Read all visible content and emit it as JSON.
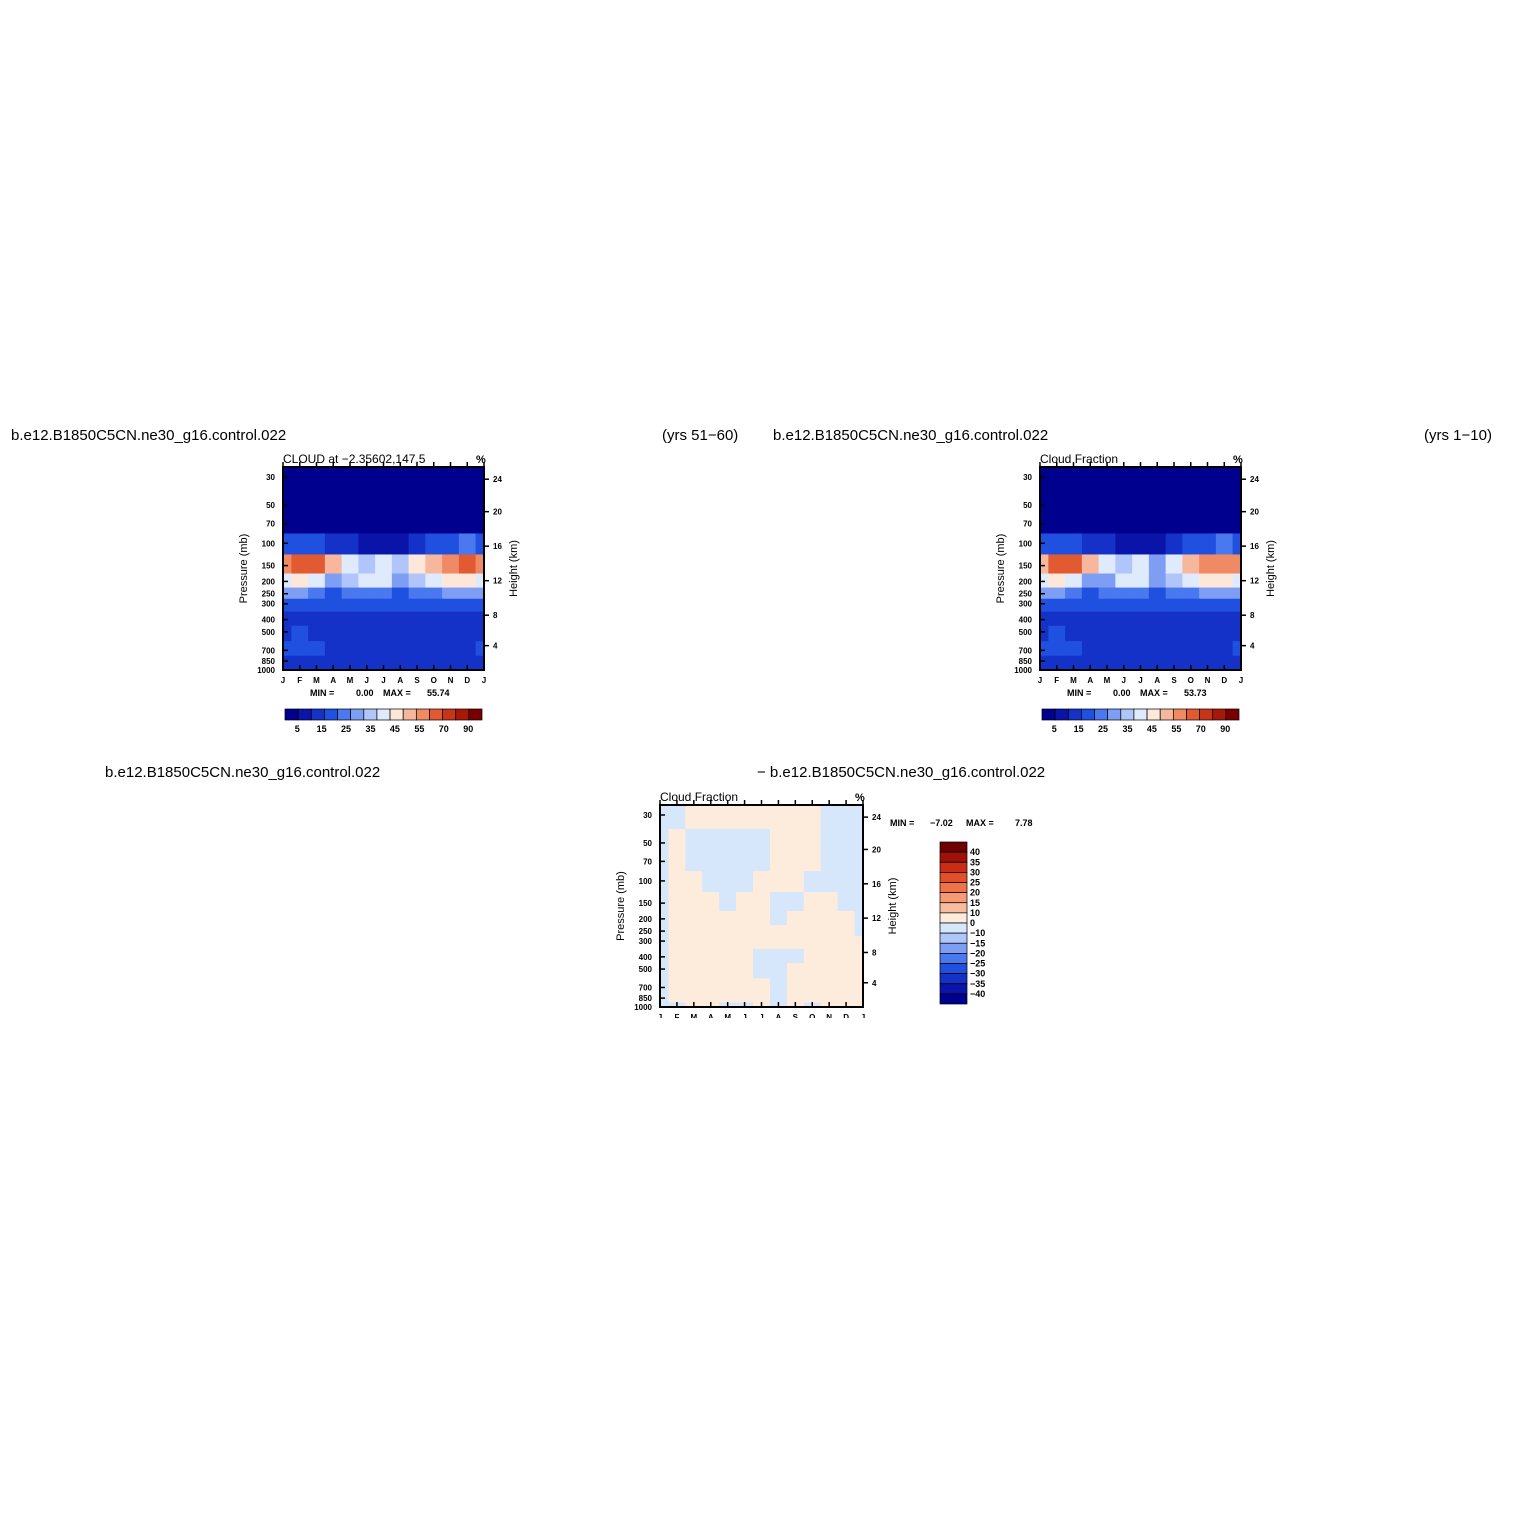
{
  "colors": {
    "abs_levels": [
      "#00008f",
      "#0a14a8",
      "#1432c8",
      "#2050e0",
      "#4a78ee",
      "#7e9ef4",
      "#b0c6fa",
      "#dfeafd",
      "#fde7d8",
      "#f7b79c",
      "#f08a64",
      "#e25a32",
      "#c83418",
      "#a81808",
      "#7a0000"
    ],
    "diff_levels": [
      "#00008f",
      "#0a14a8",
      "#1432c8",
      "#2050e0",
      "#4a78ee",
      "#7e9ef4",
      "#b0c6fa",
      "#d6e6fb",
      "#fdecdc",
      "#f7bd9e",
      "#f49a74",
      "#ee7448",
      "#e2502a",
      "#c82e14",
      "#9e1208",
      "#6e0000"
    ]
  },
  "chart_data": [
    {
      "type": "heatmap",
      "case": "b.e12.B1850C5CN.ne30_g16.control.022",
      "period": "(yrs 51−60)",
      "title": "CLOUD at −2.35602,147.5",
      "units": "%",
      "ylabel": "Pressure (mb)",
      "y2label": "Height (km)",
      "x_ticks": [
        "J",
        "F",
        "M",
        "A",
        "M",
        "J",
        "J",
        "A",
        "S",
        "O",
        "N",
        "D",
        "J"
      ],
      "y_ticks": [
        "30",
        "50",
        "70",
        "100",
        "150",
        "200",
        "250",
        "300",
        "400",
        "500",
        "700",
        "850",
        "1000"
      ],
      "y2_ticks": [
        "24",
        "20",
        "16",
        "12",
        "8",
        "4"
      ],
      "stats": {
        "min_label": "MIN =",
        "min": "0.00",
        "max_label": "MAX =",
        "max": "55.74"
      },
      "colorbar_labels": [
        "5",
        "15",
        "25",
        "35",
        "45",
        "55",
        "70",
        "90"
      ],
      "levels": [
        3,
        5,
        10,
        15,
        20,
        25,
        30,
        35,
        40,
        45,
        50,
        55,
        60,
        70,
        80,
        90
      ],
      "min": 0.0,
      "max": 55.74,
      "pressure_levels": [
        30,
        50,
        70,
        100,
        150,
        200,
        250,
        300,
        400,
        500,
        700,
        850,
        1000
      ],
      "values": [
        [
          1,
          1,
          1,
          1,
          1,
          1,
          1,
          1,
          1,
          1,
          1,
          1,
          1
        ],
        [
          1,
          1,
          1,
          1,
          1,
          1,
          1,
          1,
          1,
          1,
          1,
          1,
          1
        ],
        [
          2,
          2,
          2,
          2,
          2,
          1,
          1,
          1,
          2,
          2,
          2,
          2,
          2
        ],
        [
          14,
          14,
          13,
          9,
          6,
          4,
          3,
          4,
          7,
          12,
          14,
          15,
          14
        ],
        [
          45,
          50,
          52,
          40,
          32,
          28,
          30,
          26,
          36,
          44,
          48,
          50,
          46
        ],
        [
          34,
          36,
          33,
          24,
          26,
          30,
          33,
          24,
          26,
          34,
          36,
          36,
          34
        ],
        [
          20,
          21,
          19,
          14,
          16,
          18,
          17,
          14,
          16,
          19,
          21,
          21,
          20
        ],
        [
          14,
          14,
          13,
          10,
          11,
          12,
          12,
          10,
          11,
          13,
          14,
          14,
          14
        ],
        [
          9,
          9,
          8,
          8,
          6,
          8,
          9,
          8,
          5,
          7,
          8,
          8,
          9
        ],
        [
          9,
          10,
          9,
          8,
          7,
          8,
          8,
          8,
          7,
          7,
          8,
          8,
          9
        ],
        [
          10,
          10,
          10,
          9,
          8,
          9,
          9,
          9,
          9,
          9,
          8,
          8,
          10
        ],
        [
          8,
          9,
          8,
          8,
          6,
          8,
          9,
          9,
          8,
          8,
          7,
          7,
          8
        ],
        [
          7,
          7,
          7,
          7,
          6,
          6,
          7,
          7,
          7,
          7,
          7,
          7,
          7
        ]
      ]
    },
    {
      "type": "heatmap",
      "case": "b.e12.B1850C5CN.ne30_g16.control.022",
      "period": "(yrs 1−10)",
      "title": "Cloud Fraction",
      "units": "%",
      "ylabel": "Pressure (mb)",
      "y2label": "Height (km)",
      "x_ticks": [
        "J",
        "F",
        "M",
        "A",
        "M",
        "J",
        "J",
        "A",
        "S",
        "O",
        "N",
        "D",
        "J"
      ],
      "y_ticks": [
        "30",
        "50",
        "70",
        "100",
        "150",
        "200",
        "250",
        "300",
        "400",
        "500",
        "700",
        "850",
        "1000"
      ],
      "y2_ticks": [
        "24",
        "20",
        "16",
        "12",
        "8",
        "4"
      ],
      "stats": {
        "min_label": "MIN =",
        "min": "0.00",
        "max_label": "MAX =",
        "max": "53.73"
      },
      "colorbar_labels": [
        "5",
        "15",
        "25",
        "35",
        "45",
        "55",
        "70",
        "90"
      ],
      "levels": [
        3,
        5,
        10,
        15,
        20,
        25,
        30,
        35,
        40,
        45,
        50,
        55,
        60,
        70,
        80,
        90
      ],
      "min": 0.0,
      "max": 53.73,
      "pressure_levels": [
        30,
        50,
        70,
        100,
        150,
        200,
        250,
        300,
        400,
        500,
        700,
        850,
        1000
      ],
      "values": [
        [
          1,
          1,
          1,
          1,
          1,
          1,
          1,
          1,
          1,
          1,
          1,
          1,
          1
        ],
        [
          1,
          1,
          1,
          1,
          1,
          1,
          1,
          1,
          1,
          1,
          1,
          1,
          1
        ],
        [
          2,
          2,
          2,
          2,
          2,
          1,
          1,
          1,
          2,
          2,
          2,
          2,
          2
        ],
        [
          14,
          14,
          13,
          9,
          6,
          4,
          3,
          4,
          7,
          12,
          14,
          15,
          14
        ],
        [
          44,
          50,
          50,
          40,
          30,
          26,
          32,
          24,
          34,
          42,
          46,
          49,
          45
        ],
        [
          32,
          36,
          32,
          24,
          24,
          30,
          34,
          24,
          26,
          34,
          36,
          36,
          33
        ],
        [
          20,
          21,
          19,
          14,
          16,
          18,
          18,
          14,
          16,
          19,
          21,
          21,
          20
        ],
        [
          14,
          14,
          13,
          10,
          11,
          12,
          12,
          10,
          11,
          13,
          14,
          14,
          14
        ],
        [
          9,
          9,
          8,
          6,
          8,
          9,
          9,
          8,
          7,
          8,
          8,
          8,
          9
        ],
        [
          9,
          10,
          9,
          8,
          8,
          9,
          8,
          8,
          8,
          8,
          6,
          8,
          9
        ],
        [
          10,
          10,
          10,
          9,
          8,
          9,
          9,
          9,
          9,
          9,
          8,
          8,
          10
        ],
        [
          8,
          9,
          8,
          6,
          8,
          9,
          9,
          9,
          8,
          8,
          7,
          7,
          8
        ],
        [
          7,
          7,
          7,
          7,
          7,
          7,
          7,
          7,
          7,
          7,
          7,
          7,
          7
        ]
      ]
    },
    {
      "type": "heatmap",
      "case": "b.e12.B1850C5CN.ne30_g16.control.022",
      "case_right": "− b.e12.B1850C5CN.ne30_g16.control.022",
      "title": "Cloud Fraction",
      "units": "%",
      "ylabel": "Pressure (mb)",
      "y2label": "Height (km)",
      "x_ticks": [
        "J",
        "F",
        "M",
        "A",
        "M",
        "J",
        "J",
        "A",
        "S",
        "O",
        "N",
        "D",
        "J"
      ],
      "y_ticks": [
        "30",
        "50",
        "70",
        "100",
        "150",
        "200",
        "250",
        "300",
        "400",
        "500",
        "700",
        "850",
        "1000"
      ],
      "y2_ticks": [
        "24",
        "20",
        "16",
        "12",
        "8",
        "4"
      ],
      "stats": {
        "min_label": "MIN =",
        "min": "−7.02",
        "max_label": "MAX =",
        "max": "7.78"
      },
      "colorbar_labels": [
        "40",
        "35",
        "30",
        "25",
        "20",
        "15",
        "10",
        "0",
        "−10",
        "−15",
        "−20",
        "−25",
        "−30",
        "−35",
        "−40"
      ],
      "levels": [
        -40,
        -35,
        -30,
        -25,
        -20,
        -15,
        -10,
        0,
        10,
        15,
        20,
        25,
        30,
        35,
        40
      ],
      "min": -7.02,
      "max": 7.78,
      "pressure_levels": [
        30,
        50,
        70,
        100,
        150,
        200,
        250,
        300,
        400,
        500,
        700,
        850,
        1000
      ],
      "values": [
        [
          -1,
          -1,
          1,
          1,
          1,
          1,
          1,
          1,
          1,
          1,
          -1,
          -1,
          -1
        ],
        [
          -1,
          1,
          -1,
          -1,
          -1,
          -1,
          -1,
          1,
          1,
          1,
          -1,
          -1,
          -1
        ],
        [
          -1,
          1,
          -1,
          -1,
          -1,
          -1,
          -1,
          1,
          1,
          1,
          -1,
          -1,
          -1
        ],
        [
          -1,
          1,
          1,
          -1,
          -1,
          -1,
          1,
          1,
          1,
          -1,
          -1,
          -1,
          -1
        ],
        [
          -1,
          1,
          1,
          1,
          -1,
          1,
          1,
          -1,
          -1,
          1,
          1,
          -1,
          -1
        ],
        [
          -1,
          1,
          1,
          1,
          1,
          1,
          1,
          -1,
          1,
          1,
          1,
          1,
          -1
        ],
        [
          -1,
          1,
          1,
          1,
          1,
          1,
          1,
          1,
          1,
          1,
          1,
          1,
          -1
        ],
        [
          -1,
          1,
          1,
          1,
          1,
          1,
          1,
          1,
          1,
          1,
          1,
          1,
          1
        ],
        [
          -1,
          1,
          1,
          1,
          1,
          1,
          -1,
          -1,
          -1,
          1,
          1,
          1,
          1
        ],
        [
          -1,
          1,
          1,
          1,
          1,
          1,
          -1,
          -1,
          1,
          1,
          1,
          1,
          1
        ],
        [
          -1,
          1,
          1,
          1,
          1,
          1,
          1,
          -1,
          1,
          1,
          1,
          1,
          1
        ],
        [
          -1,
          1,
          1,
          1,
          1,
          1,
          1,
          -1,
          1,
          1,
          1,
          1,
          1
        ],
        [
          -1,
          -1,
          1,
          1,
          -1,
          -1,
          1,
          -1,
          1,
          -1,
          1,
          1,
          1
        ]
      ]
    }
  ]
}
